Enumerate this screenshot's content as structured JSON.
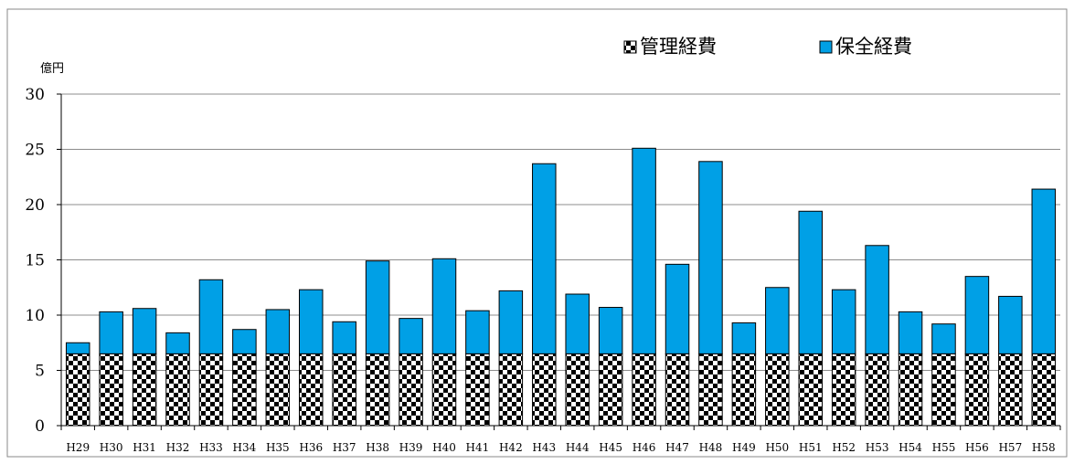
{
  "chart_data": {
    "type": "bar",
    "stacked": true,
    "unit_label": "億円",
    "categories": [
      "H29",
      "H30",
      "H31",
      "H32",
      "H33",
      "H34",
      "H35",
      "H36",
      "H37",
      "H38",
      "H39",
      "H40",
      "H41",
      "H42",
      "H43",
      "H44",
      "H45",
      "H46",
      "H47",
      "H48",
      "H49",
      "H50",
      "H51",
      "H52",
      "H53",
      "H54",
      "H55",
      "H56",
      "H57",
      "H58"
    ],
    "series": [
      {
        "name": "管理経費",
        "pattern": "checkerboard",
        "color": "#000000",
        "values": [
          6.5,
          6.5,
          6.5,
          6.5,
          6.5,
          6.5,
          6.5,
          6.5,
          6.5,
          6.5,
          6.5,
          6.5,
          6.5,
          6.5,
          6.5,
          6.5,
          6.5,
          6.5,
          6.5,
          6.5,
          6.5,
          6.5,
          6.5,
          6.5,
          6.5,
          6.5,
          6.5,
          6.5,
          6.5,
          6.5
        ]
      },
      {
        "name": "保全経費",
        "color": "#00a0e6",
        "values": [
          1.0,
          3.8,
          4.1,
          1.9,
          6.7,
          2.2,
          4.0,
          5.8,
          2.9,
          8.4,
          3.2,
          8.6,
          3.9,
          5.7,
          17.2,
          5.4,
          4.2,
          18.6,
          8.1,
          17.4,
          2.8,
          6.0,
          12.9,
          5.8,
          9.8,
          3.8,
          2.7,
          7.0,
          5.2,
          14.9
        ]
      }
    ],
    "ylim": [
      0,
      30
    ],
    "yticks": [
      0,
      5,
      10,
      15,
      20,
      25,
      30
    ],
    "grid": true,
    "legend_position": "top-right"
  }
}
